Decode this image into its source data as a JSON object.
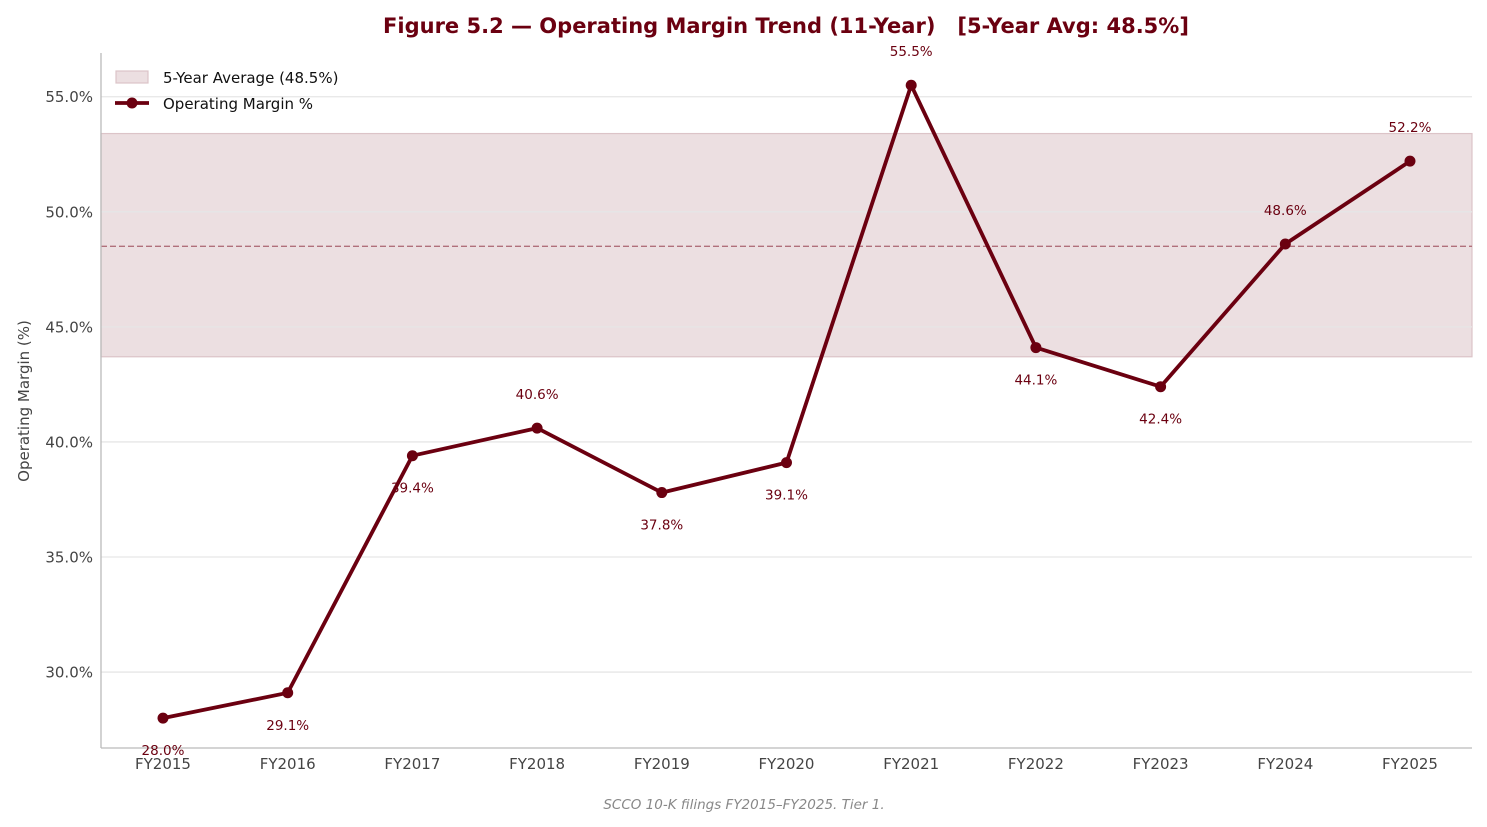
{
  "chart_data": {
    "type": "line",
    "title": "Figure 5.2 — Operating Margin Trend (11-Year)   [5-Year Avg: 48.5%]",
    "xlabel": "",
    "ylabel": "Operating Margin (%)",
    "categories": [
      "FY2015",
      "FY2016",
      "FY2017",
      "FY2018",
      "FY2019",
      "FY2020",
      "FY2021",
      "FY2022",
      "FY2023",
      "FY2024",
      "FY2025"
    ],
    "series": [
      {
        "name": "Operating Margin %",
        "values": [
          28.0,
          29.1,
          39.4,
          40.6,
          37.8,
          39.1,
          55.5,
          44.1,
          42.4,
          48.6,
          52.2
        ],
        "labels": [
          "28.0%",
          "29.1%",
          "39.4%",
          "40.6%",
          "37.8%",
          "39.1%",
          "55.5%",
          "44.1%",
          "42.4%",
          "48.6%",
          "52.2%"
        ]
      }
    ],
    "average_band": {
      "name": "5-Year Average (48.5%)",
      "value": 48.5,
      "low": 43.7,
      "high": 53.4
    },
    "ylim": [
      26.7,
      56.9
    ],
    "yticks": [
      30,
      35,
      40,
      45,
      50,
      55
    ],
    "ytick_labels": [
      "30.0%",
      "35.0%",
      "40.0%",
      "45.0%",
      "50.0%",
      "55.0%"
    ],
    "grid": "horizontal",
    "legend_position": "top-left",
    "source_note": "SCCO 10-K filings FY2015–FY2025. Tier 1.",
    "colors": {
      "line": "#6b0010",
      "band": "#ecdfe1",
      "band_edge": "#dcc4c8",
      "avg_line": "#b0707b",
      "grid": "#e6e6e6",
      "axis": "#bbbbbb"
    }
  }
}
